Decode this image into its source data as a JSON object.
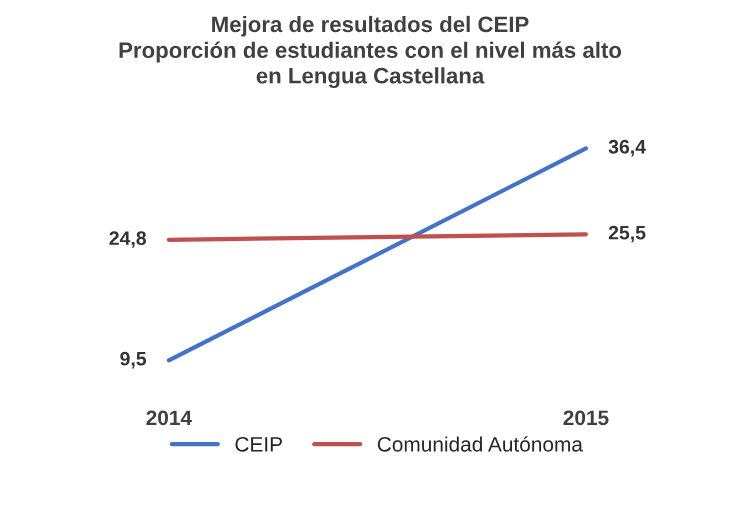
{
  "chart_data": {
    "type": "line",
    "title": "Mejora de resultados del CEIP\nProporción de estudiantes con el nivel más alto\nen Lengua Castellana",
    "categories": [
      "2014",
      "2015"
    ],
    "series": [
      {
        "name": "CEIP",
        "color": "#4472c4",
        "values": [
          9.5,
          36.4
        ],
        "value_labels": [
          "9,5",
          "36,4"
        ]
      },
      {
        "name": "Comunidad Autónoma",
        "color": "#c0504d",
        "values": [
          24.8,
          25.5
        ],
        "value_labels": [
          "24,8",
          "25,5"
        ]
      }
    ],
    "legend": "bottom",
    "grid": false,
    "marker": "none",
    "line_style": "solid",
    "tick_labels": "x"
  }
}
